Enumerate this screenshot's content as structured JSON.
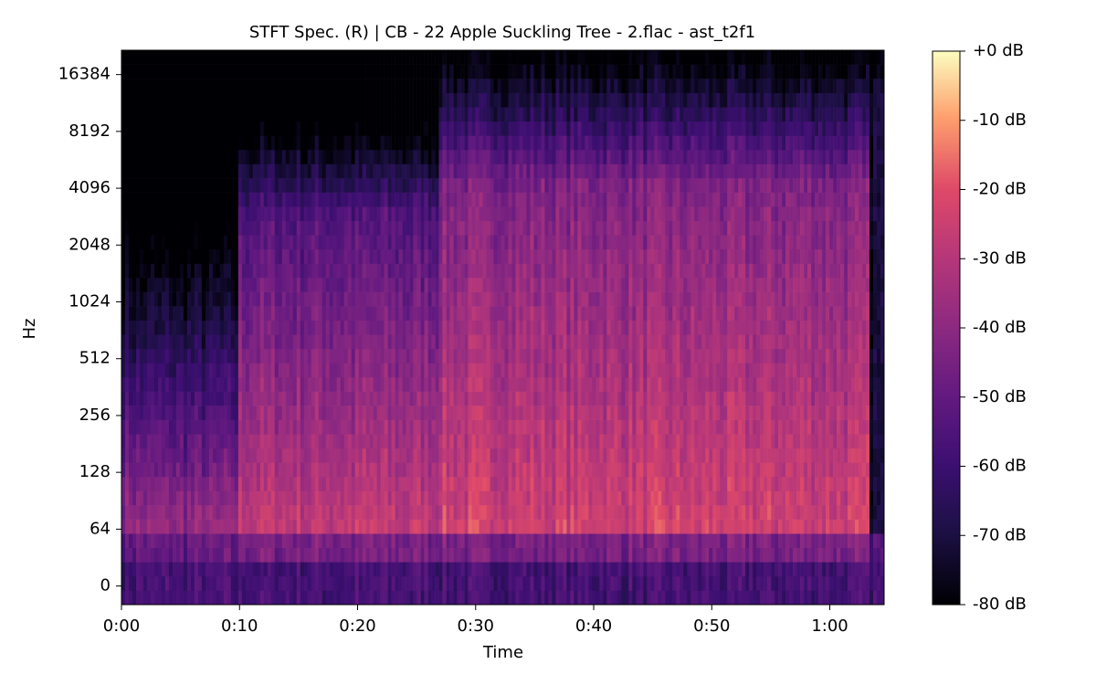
{
  "chart_data": {
    "type": "spectrogram",
    "title": "STFT Spec. (R) | CB - 22 Apple Suckling Tree - 2.flac - ast_t2f1",
    "x_label": "Time",
    "y_label": "Hz",
    "xlim": [
      0,
      64.6
    ],
    "xticks": [
      {
        "value": 0,
        "label": "0:00"
      },
      {
        "value": 10,
        "label": "0:10"
      },
      {
        "value": 20,
        "label": "0:20"
      },
      {
        "value": 30,
        "label": "0:30"
      },
      {
        "value": 40,
        "label": "0:40"
      },
      {
        "value": 50,
        "label": "0:50"
      },
      {
        "value": 60,
        "label": "1:00"
      }
    ],
    "yscale": "symlog",
    "linthresh": 64,
    "ylim": [
      -21,
      22050
    ],
    "yticks": [
      0,
      64,
      128,
      256,
      512,
      1024,
      2048,
      4096,
      8192,
      16384
    ],
    "colormap": "magma",
    "clim": [
      -80,
      0
    ],
    "cticks": [
      {
        "value": 0,
        "label": "+0 dB"
      },
      {
        "value": -10,
        "label": "-10 dB"
      },
      {
        "value": -20,
        "label": "-20 dB"
      },
      {
        "value": -30,
        "label": "-30 dB"
      },
      {
        "value": -40,
        "label": "-40 dB"
      },
      {
        "value": -50,
        "label": "-50 dB"
      },
      {
        "value": -60,
        "label": "-60 dB"
      },
      {
        "value": -70,
        "label": "-70 dB"
      },
      {
        "value": -80,
        "label": "-80 dB"
      }
    ]
  }
}
